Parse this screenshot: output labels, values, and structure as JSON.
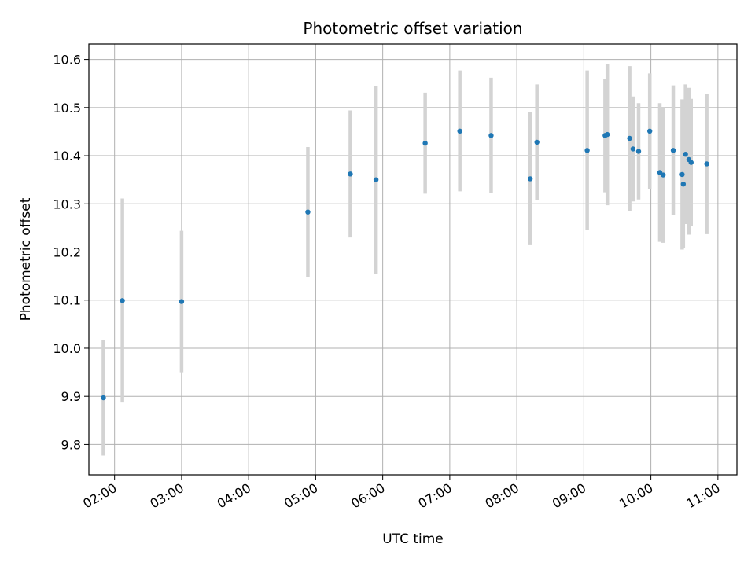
{
  "chart_data": {
    "type": "scatter",
    "title": "Photometric offset variation",
    "xlabel": "UTC time",
    "ylabel": "Photometric offset",
    "x_tick_labels": [
      "02:00",
      "03:00",
      "04:00",
      "05:00",
      "06:00",
      "07:00",
      "08:00",
      "09:00",
      "10:00",
      "11:00"
    ],
    "y_ticks": [
      9.8,
      9.9,
      10.0,
      10.1,
      10.2,
      10.3,
      10.4,
      10.5,
      10.6
    ],
    "y_tick_labels": [
      "9.8",
      "9.9",
      "10.0",
      "10.1",
      "10.2",
      "10.3",
      "10.4",
      "10.5",
      "10.6"
    ],
    "xlim": [
      "01:37",
      "11:17"
    ],
    "ylim": [
      9.737,
      10.632
    ],
    "grid": true,
    "point_color": "#1f77b4",
    "errorbar_color": "#d3d3d3",
    "points": [
      {
        "x": "01:50",
        "y": 9.897,
        "low": 9.777,
        "high": 10.017
      },
      {
        "x": "02:07",
        "y": 10.099,
        "low": 9.887,
        "high": 10.311
      },
      {
        "x": "03:00",
        "y": 10.097,
        "low": 9.95,
        "high": 10.244
      },
      {
        "x": "04:53",
        "y": 10.283,
        "low": 10.148,
        "high": 10.418
      },
      {
        "x": "05:31",
        "y": 10.362,
        "low": 10.23,
        "high": 10.494
      },
      {
        "x": "05:54",
        "y": 10.35,
        "low": 10.155,
        "high": 10.545
      },
      {
        "x": "06:38",
        "y": 10.426,
        "low": 10.321,
        "high": 10.531
      },
      {
        "x": "07:09",
        "y": 10.451,
        "low": 10.326,
        "high": 10.577
      },
      {
        "x": "07:37",
        "y": 10.442,
        "low": 10.322,
        "high": 10.562
      },
      {
        "x": "08:12",
        "y": 10.352,
        "low": 10.214,
        "high": 10.49
      },
      {
        "x": "08:18",
        "y": 10.428,
        "low": 10.308,
        "high": 10.548
      },
      {
        "x": "09:03",
        "y": 10.411,
        "low": 10.245,
        "high": 10.577
      },
      {
        "x": "09:19",
        "y": 10.442,
        "low": 10.324,
        "high": 10.56
      },
      {
        "x": "09:21",
        "y": 10.444,
        "low": 10.297,
        "high": 10.59
      },
      {
        "x": "09:41",
        "y": 10.436,
        "low": 10.285,
        "high": 10.586
      },
      {
        "x": "09:44",
        "y": 10.414,
        "low": 10.305,
        "high": 10.523
      },
      {
        "x": "09:49",
        "y": 10.409,
        "low": 10.309,
        "high": 10.509
      },
      {
        "x": "09:59",
        "y": 10.451,
        "low": 10.33,
        "high": 10.571
      },
      {
        "x": "10:08",
        "y": 10.365,
        "low": 10.221,
        "high": 10.509
      },
      {
        "x": "10:11",
        "y": 10.36,
        "low": 10.219,
        "high": 10.5
      },
      {
        "x": "10:20",
        "y": 10.411,
        "low": 10.276,
        "high": 10.546
      },
      {
        "x": "10:28",
        "y": 10.361,
        "low": 10.205,
        "high": 10.517
      },
      {
        "x": "10:29",
        "y": 10.341,
        "low": 10.209,
        "high": 10.473
      },
      {
        "x": "10:31",
        "y": 10.403,
        "low": 10.258,
        "high": 10.548
      },
      {
        "x": "10:34",
        "y": 10.392,
        "low": 10.236,
        "high": 10.541
      },
      {
        "x": "10:36",
        "y": 10.386,
        "low": 10.253,
        "high": 10.518
      },
      {
        "x": "10:50",
        "y": 10.383,
        "low": 10.237,
        "high": 10.529
      }
    ]
  }
}
